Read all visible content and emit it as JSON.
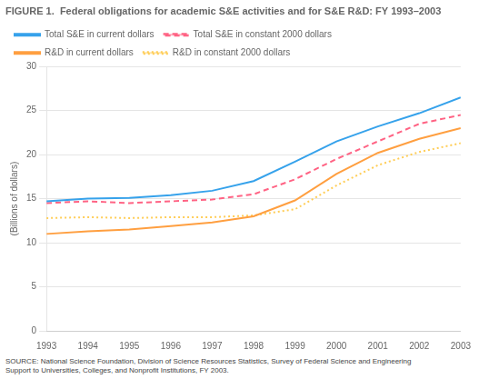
{
  "chart_data": {
    "type": "line",
    "title": "FIGURE 1.  Federal obligations for academic S&E activities and for S&E R&D: FY 1993–2003",
    "ylabel": "(Billions of dollars)",
    "annotations": [
      "SOURCE: National Science Foundation, Division of Science Resources Statistics, Survey of Federal Science and Engineering\nSupport to Universities, Colleges, and Nonprofit Institutions, FY 2003."
    ],
    "x": [
      1993,
      1994,
      1995,
      1996,
      1997,
      1998,
      1999,
      2000,
      2001,
      2002,
      2003
    ],
    "series": [
      {
        "name": "Total S&E in current dollars",
        "line_style": "solid",
        "values": [
          14.7,
          15.0,
          15.1,
          15.4,
          15.9,
          17.0,
          19.2,
          21.5,
          23.2,
          24.7,
          26.5
        ]
      },
      {
        "name": "Total S&E in constant 2000 dollars",
        "line_style": "dashed",
        "values": [
          14.5,
          14.7,
          14.5,
          14.7,
          14.9,
          15.5,
          17.2,
          19.5,
          21.5,
          23.5,
          24.5
        ]
      },
      {
        "name": "R&D in current dollars",
        "line_style": "solid",
        "values": [
          11.0,
          11.3,
          11.5,
          11.9,
          12.3,
          13.0,
          14.8,
          17.8,
          20.2,
          21.8,
          23.0
        ]
      },
      {
        "name": "R&D in constant 2000 dollars",
        "line_style": "dotted",
        "values": [
          12.8,
          12.9,
          12.8,
          12.9,
          12.9,
          13.1,
          13.8,
          16.5,
          18.8,
          20.3,
          21.3
        ]
      }
    ],
    "xlim": [
      1993,
      2003
    ],
    "xticks": [
      1993,
      1994,
      1995,
      1996,
      1997,
      1998,
      1999,
      2000,
      2001,
      2002,
      2003
    ],
    "ylim": [
      0,
      30
    ],
    "yticks": [
      0,
      5,
      10,
      15,
      20,
      25,
      30
    ],
    "grid": "y",
    "legend": "upper left"
  }
}
